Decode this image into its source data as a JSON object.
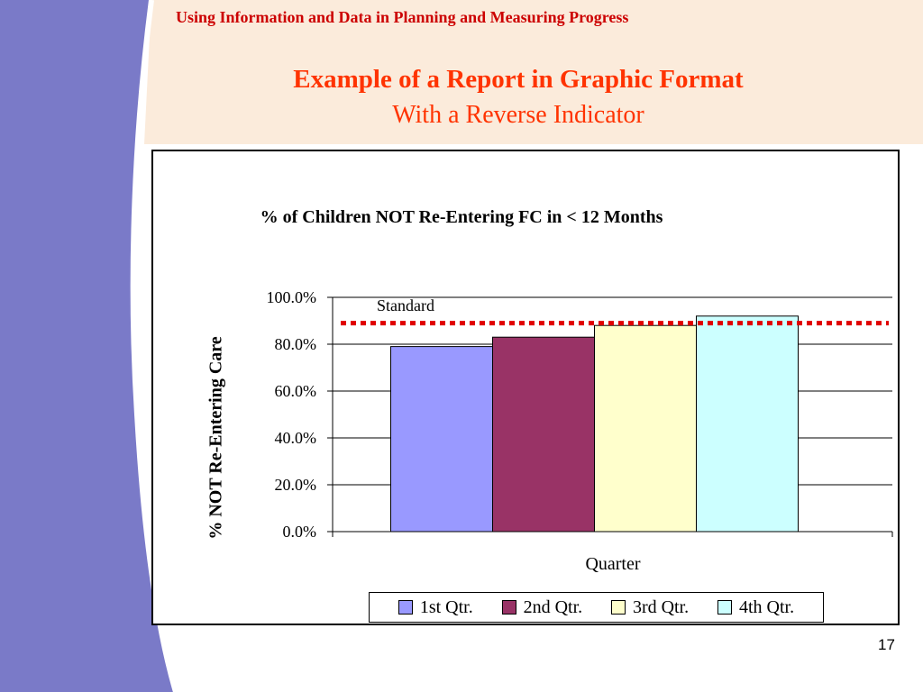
{
  "slide": {
    "header": "Using Information and Data in Planning and Measuring Progress",
    "title": "Example of a Report in Graphic Format",
    "subtitle": "With a Reverse Indicator",
    "page_number": "17"
  },
  "colors": {
    "header_text": "#CC0000",
    "title_text": "#FF3300",
    "sidebar": "#7A7AC8",
    "band": "#FBEBDB",
    "standard_line": "#E00000"
  },
  "chart_data": {
    "type": "bar",
    "title": "% of Children NOT Re-Entering FC in < 12 Months",
    "xlabel": "Quarter",
    "ylabel": "% NOT Re-Entering Care",
    "ylim": [
      0,
      100
    ],
    "yticks": [
      "0.0%",
      "20.0%",
      "40.0%",
      "60.0%",
      "80.0%",
      "100.0%"
    ],
    "series": [
      {
        "name": "1st Qtr.",
        "values": [
          79
        ],
        "color": "#9999FF"
      },
      {
        "name": "2nd Qtr.",
        "values": [
          83
        ],
        "color": "#993366"
      },
      {
        "name": "3rd Qtr.",
        "values": [
          88
        ],
        "color": "#FFFFCC"
      },
      {
        "name": "4th Qtr.",
        "values": [
          92
        ],
        "color": "#CCFFFF"
      }
    ],
    "reference_line": {
      "label": "Standard",
      "value": 89
    },
    "legend_position": "bottom",
    "grid": true
  }
}
